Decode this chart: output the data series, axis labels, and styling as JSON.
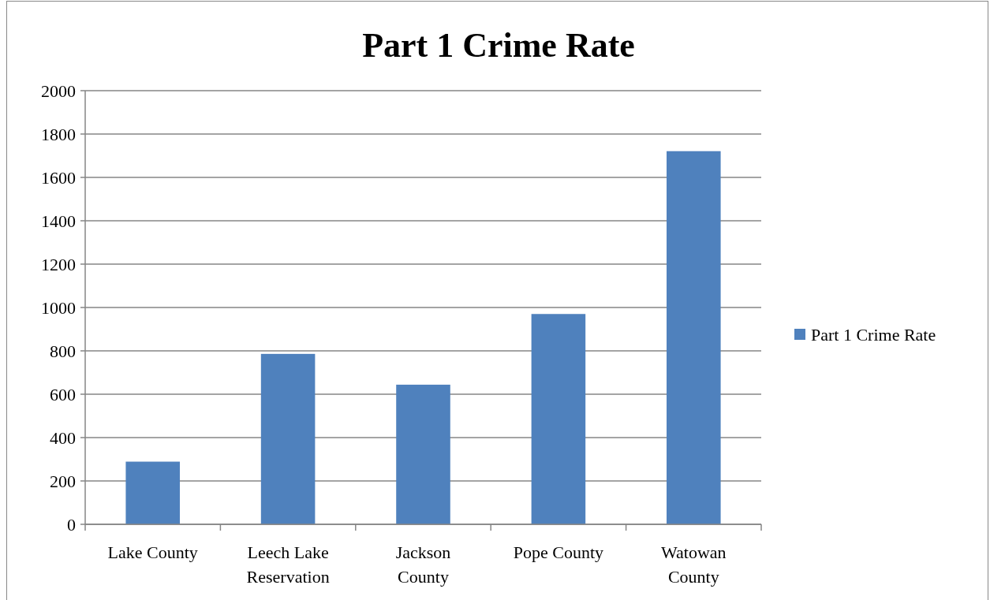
{
  "chart_data": {
    "type": "bar",
    "title": "Part 1 Crime Rate",
    "categories": [
      "Lake County",
      "Leech Lake Reservation",
      "Jackson County",
      "Pope County",
      "Watowan County"
    ],
    "series": [
      {
        "name": "Part 1 Crime Rate",
        "color": "#4f81bd",
        "values": [
          289,
          786,
          644,
          970,
          1721
        ]
      }
    ],
    "ylim": [
      0,
      2000
    ],
    "yticks": [
      0,
      200,
      400,
      600,
      800,
      1000,
      1200,
      1400,
      1600,
      1800,
      2000
    ],
    "grid": "y",
    "legend": "right"
  }
}
